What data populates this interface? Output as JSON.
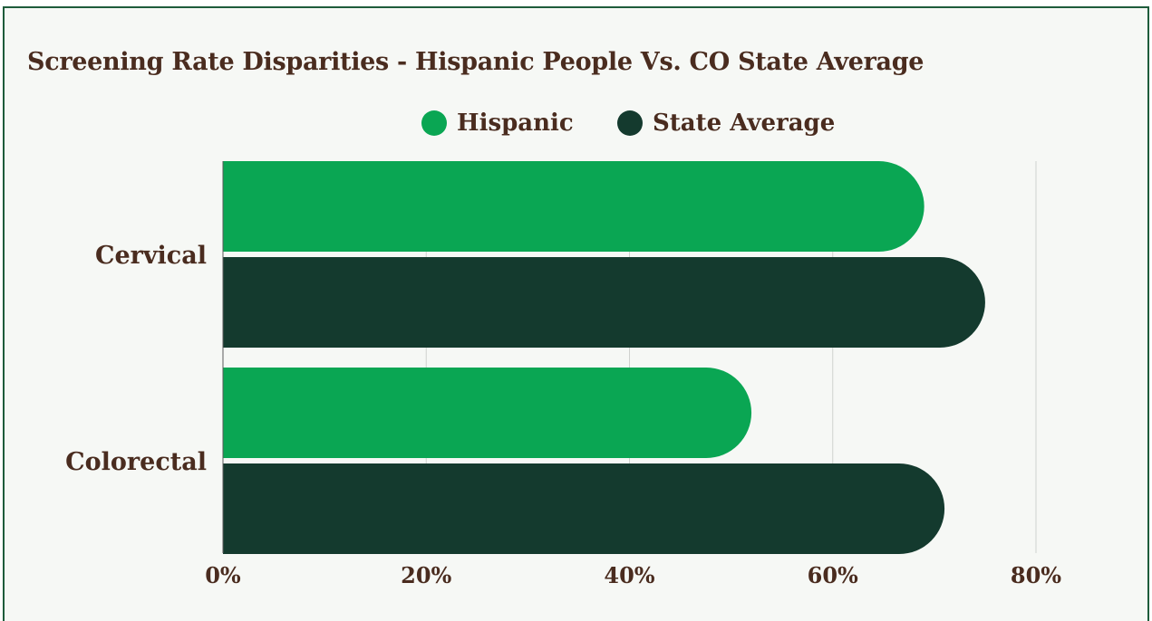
{
  "chart_data": {
    "type": "bar",
    "orientation": "horizontal",
    "title": "Screening Rate Disparities - Hispanic People Vs. CO State Average",
    "categories": [
      "Cervical",
      "Colorectal"
    ],
    "series": [
      {
        "name": "Hispanic",
        "color": "#0aa653",
        "values": [
          69,
          52
        ]
      },
      {
        "name": "State Average",
        "color": "#143a2e",
        "values": [
          75,
          71
        ]
      }
    ],
    "xlim": [
      0,
      80
    ],
    "xticks": [
      "0%",
      "20%",
      "40%",
      "60%",
      "80%"
    ],
    "xtick_values": [
      0,
      20,
      40,
      60,
      80
    ],
    "grid": true,
    "legend_position": "top-center"
  }
}
